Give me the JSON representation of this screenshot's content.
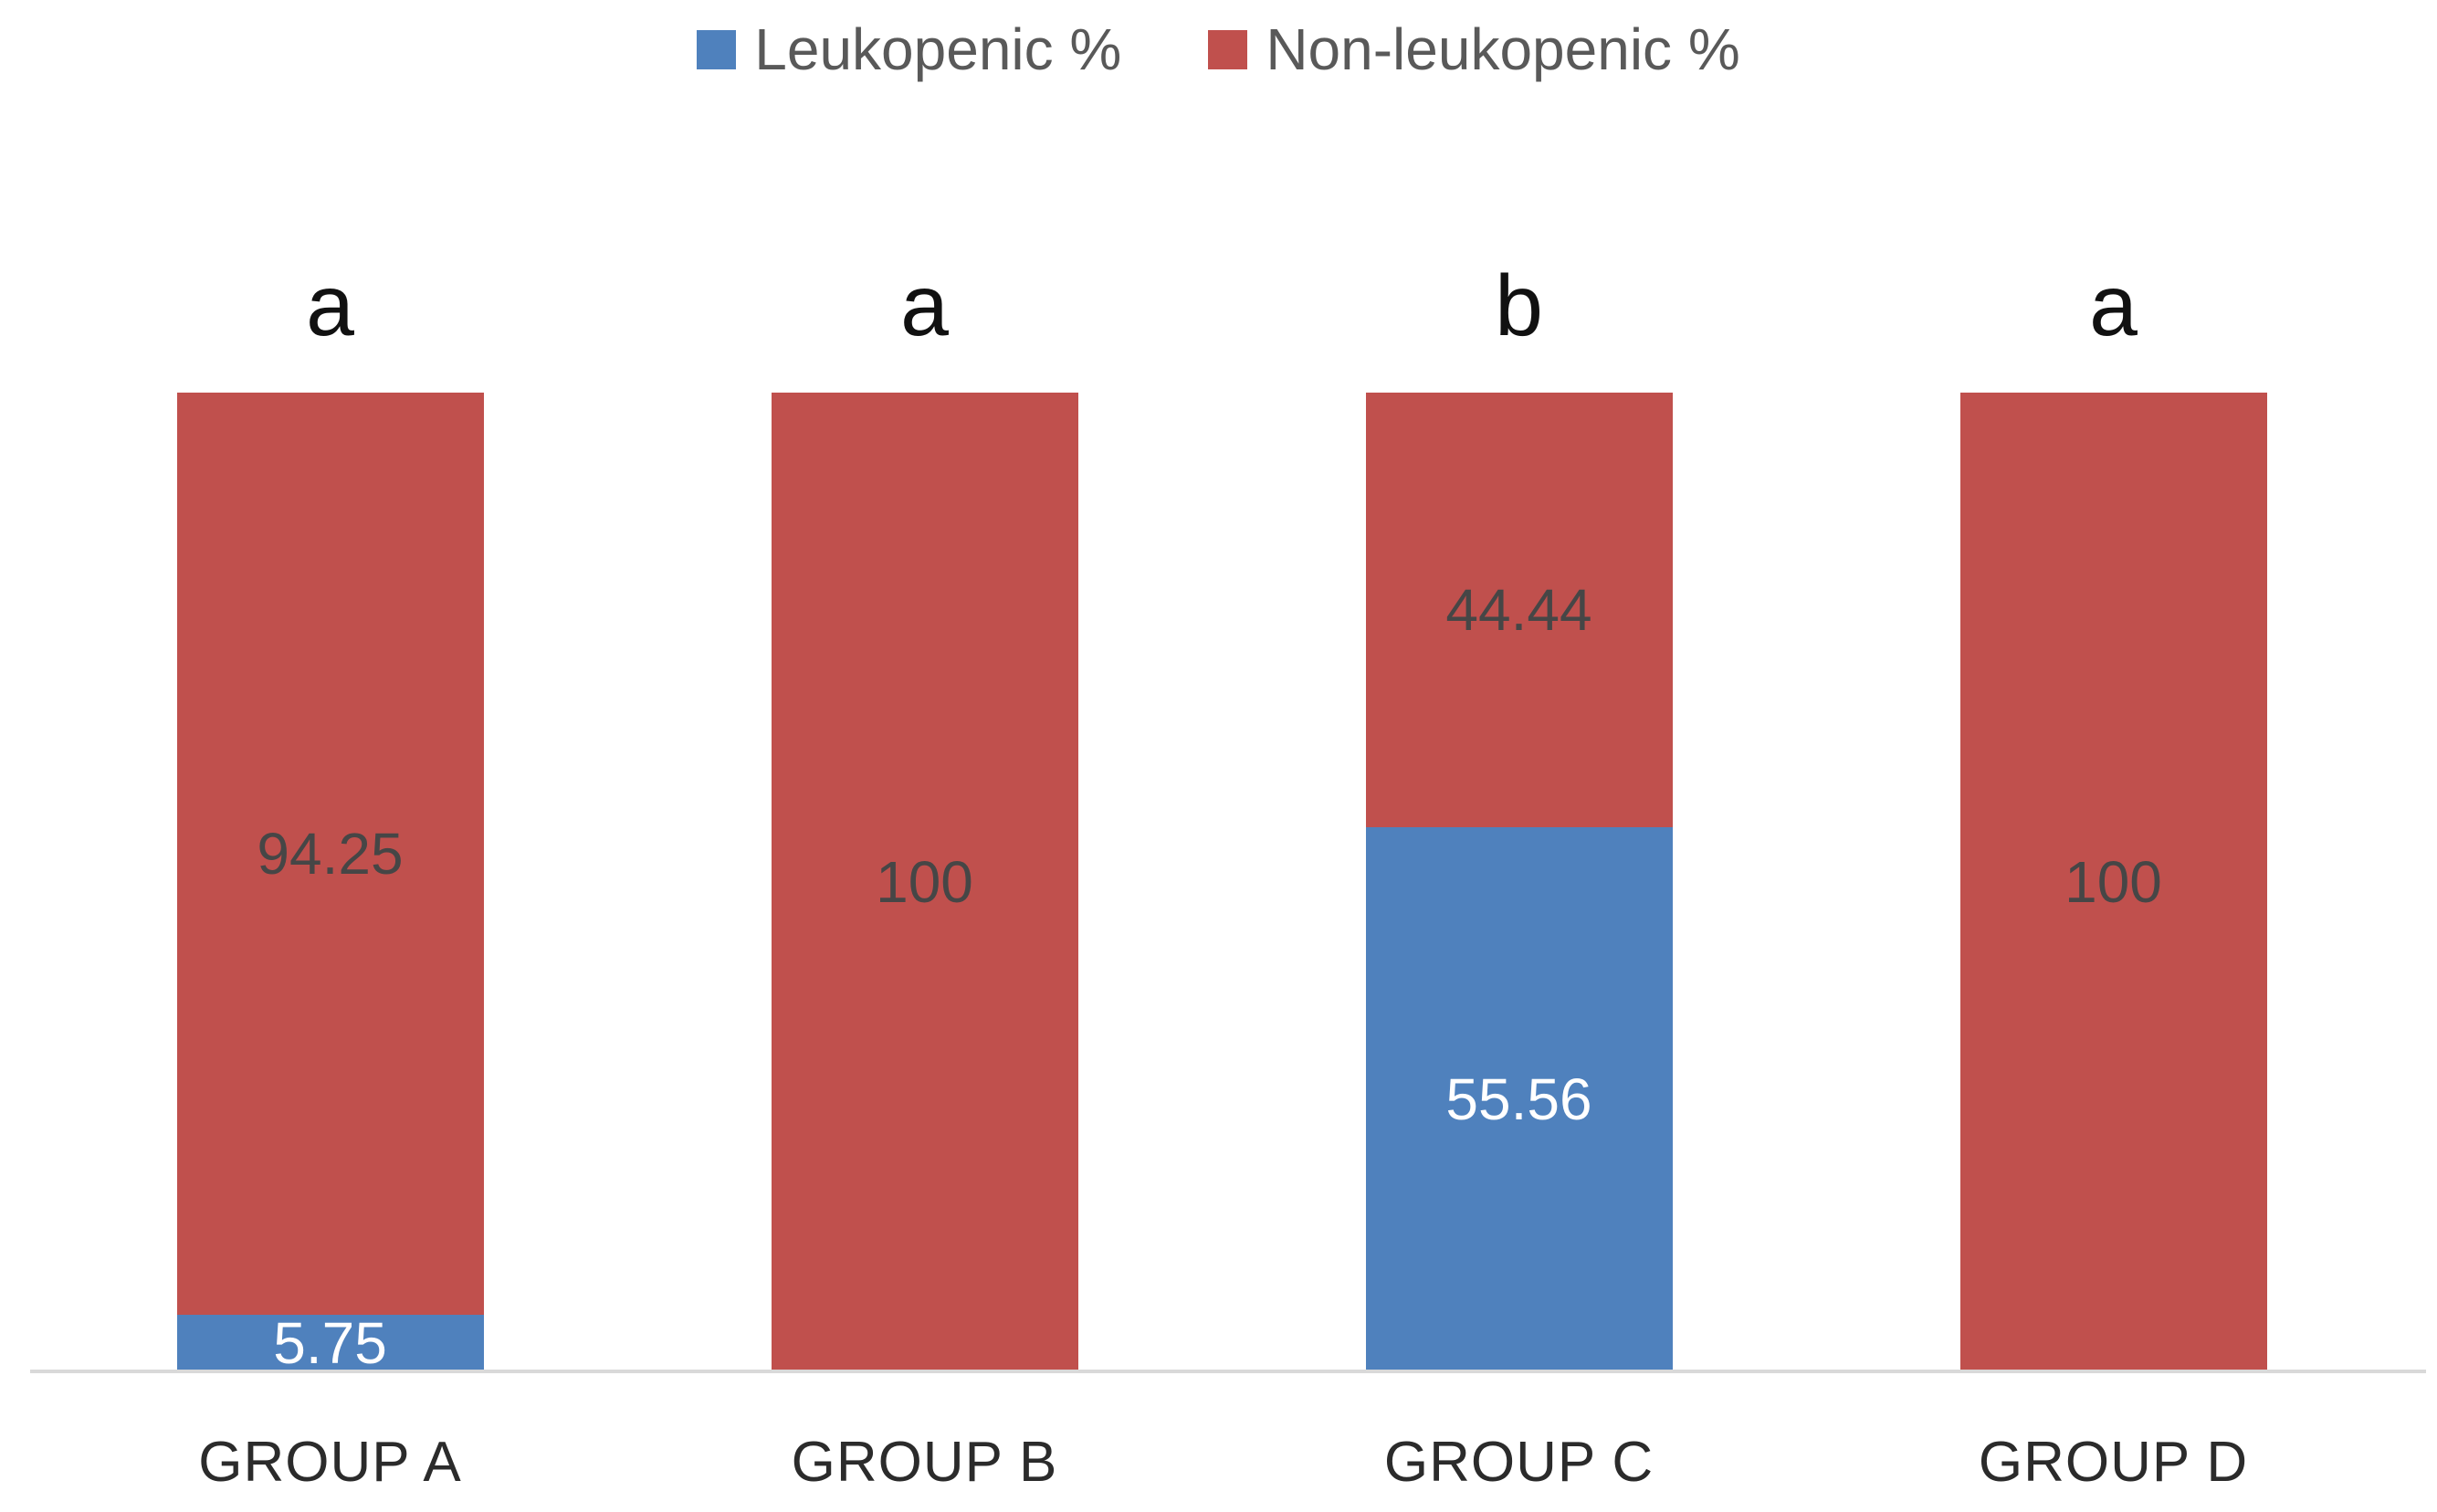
{
  "chart_data": {
    "type": "bar",
    "stacked": true,
    "title": "",
    "xlabel": "",
    "ylabel": "",
    "categories": [
      "GROUP A",
      "GROUP B",
      "GROUP C",
      "GROUP D"
    ],
    "series": [
      {
        "name": "Leukopenic %",
        "color": "#4F81BD",
        "label_color": "#FFFFFF",
        "values": [
          5.75,
          0,
          55.56,
          0
        ]
      },
      {
        "name": "Non-leukopenic %",
        "color": "#C0504D",
        "label_color": "#464646",
        "values": [
          94.25,
          100,
          44.44,
          100
        ]
      }
    ],
    "significance_letters": [
      "a",
      "a",
      "b",
      "a"
    ],
    "ylim": [
      0,
      100
    ],
    "grid": false,
    "legend_position": "top-center",
    "axis_line_color": "#D9D9D9",
    "background_color": "#FFFFFF"
  }
}
